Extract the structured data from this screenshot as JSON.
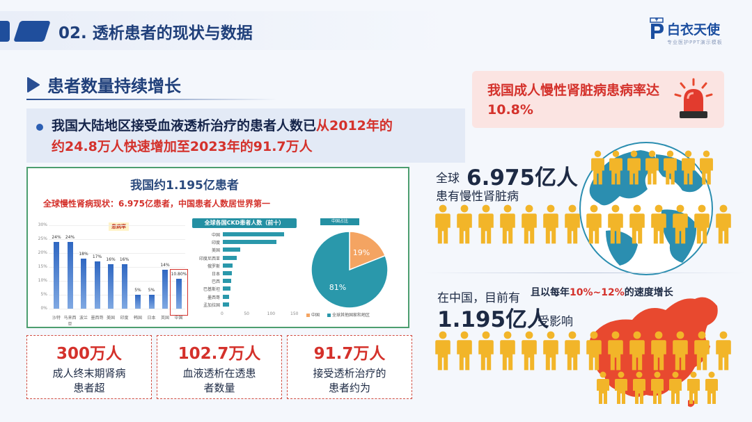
{
  "header": {
    "title": "02. 透析患者的现状与数据",
    "logo_text": "白衣天使",
    "logo_sub": "专业医护PPT演示模板"
  },
  "section": {
    "title": "患者数量持续增长"
  },
  "bullet": {
    "part1": "我国大陆地区接受血液透析治疗的患者人数已",
    "part2": "从2012年的",
    "part3": "约24.8万人快速增加至2023年的91.7万人"
  },
  "panel": {
    "title": "我国约1.195亿患者",
    "subtitle": "全球慢性肾病现状：6.975亿患者，中国患者人数居世界第一",
    "bar_legend": "患病率",
    "hbar_head": "全球各国CKD患者人数（前十）",
    "pie_head": "中国占比"
  },
  "chart_data": [
    {
      "type": "bar",
      "categories": [
        "沙特",
        "马来西亚",
        "波兰",
        "墨西哥",
        "美国",
        "印度",
        "韩国",
        "日本",
        "英国",
        "中国"
      ],
      "values": [
        24,
        24,
        18,
        17,
        16,
        16,
        5,
        5,
        14,
        10.8
      ],
      "value_labels": [
        "24%",
        "24%",
        "18%",
        "17%",
        "16%",
        "16%",
        "5%",
        "5%",
        "14%",
        "10.80%"
      ],
      "ylim": [
        0,
        30
      ],
      "yticks": [
        "30%",
        "25%",
        "20%",
        "15%",
        "10%",
        "5%",
        "0%"
      ],
      "highlight": "中国"
    },
    {
      "type": "bar",
      "orientation": "horizontal",
      "title": "全球各国CKD患者人数（前十）",
      "categories": [
        "中国",
        "印度",
        "美国",
        "印度尼西亚",
        "俄罗斯",
        "日本",
        "巴西",
        "巴基斯坦",
        "墨西哥",
        "孟加拉国"
      ],
      "values": [
        132,
        115,
        38,
        30,
        21,
        20,
        18,
        16,
        14,
        13
      ],
      "ticks": [
        "0",
        "50",
        "100",
        "150"
      ]
    },
    {
      "type": "pie",
      "title": "中国占比",
      "labels": [
        "中国",
        "全球其他国家和地区"
      ],
      "values": [
        19,
        81
      ],
      "value_labels": [
        "19%",
        "81%"
      ],
      "colors": [
        "#f4a462",
        "#2a98ab"
      ]
    }
  ],
  "stats": [
    {
      "number": "300万人",
      "label1": "成人终末期肾病",
      "label2": "患者超"
    },
    {
      "number": "102.7万人",
      "label1": "血液透析在透患",
      "label2": "者数量"
    },
    {
      "number": "91.7万人",
      "label1": "接受透析治疗的",
      "label2": "患者约为"
    }
  ],
  "alert": {
    "text": "我国成人慢性肾脏病患病率达10.8%"
  },
  "global": {
    "prefix": "全球",
    "number": "6.975亿人",
    "suffix": "患有慢性肾脏病"
  },
  "china": {
    "prefix": "在中国，目前有",
    "number": "1.195亿人",
    "suffix": "受影响",
    "note_a": "且以每年",
    "note_b": "10%~12%",
    "note_c": "的速度增长"
  },
  "colors": {
    "primary": "#1f4e9c",
    "accent_red": "#d4312b",
    "person": "#f2b529",
    "globe": "#2b8eb0",
    "china_map": "#e8492f"
  }
}
